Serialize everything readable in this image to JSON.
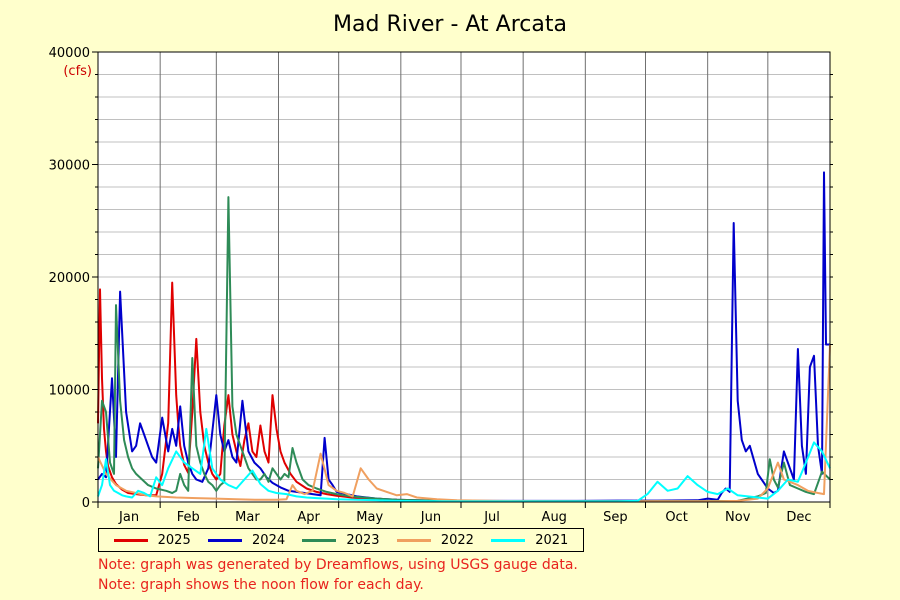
{
  "chart_data": {
    "type": "line",
    "title": "Mad River - At Arcata",
    "unit_label": "(cfs)",
    "ylim": [
      0,
      40000
    ],
    "yticks": [
      0,
      10000,
      20000,
      30000,
      40000
    ],
    "xlim": [
      1,
      366
    ],
    "grid": true,
    "legend_position": "bottom",
    "months": [
      "Jan",
      "Feb",
      "Mar",
      "Apr",
      "May",
      "Jun",
      "Jul",
      "Aug",
      "Sep",
      "Oct",
      "Nov",
      "Dec"
    ],
    "series": [
      {
        "name": "2025",
        "color": "#e00000",
        "x": [
          1,
          2,
          3,
          4,
          5,
          6,
          8,
          10,
          13,
          16,
          20,
          25,
          30,
          33,
          36,
          38,
          40,
          41,
          42,
          44,
          46,
          48,
          50,
          52,
          54,
          56,
          58,
          60,
          62,
          64,
          66,
          68,
          70,
          72,
          74,
          76,
          78,
          80,
          82,
          84,
          86,
          88,
          90,
          92,
          94,
          97,
          100,
          105,
          110,
          115,
          120,
          125,
          130,
          140,
          150
        ],
        "y": [
          7000,
          18900,
          11000,
          6500,
          4500,
          3200,
          2200,
          1600,
          1100,
          800,
          700,
          600,
          600,
          2500,
          7000,
          19500,
          9500,
          7000,
          5000,
          3300,
          2600,
          8000,
          14500,
          8000,
          5000,
          3500,
          2500,
          2000,
          2500,
          6800,
          9500,
          6000,
          4500,
          3200,
          5500,
          7000,
          4500,
          4000,
          6800,
          4500,
          3500,
          9500,
          6500,
          4500,
          3500,
          2500,
          1800,
          1200,
          900,
          700,
          550,
          450,
          350,
          250,
          200
        ]
      },
      {
        "name": "2024",
        "color": "#0000cc",
        "x": [
          1,
          3,
          5,
          8,
          10,
          12,
          15,
          18,
          20,
          22,
          24,
          26,
          28,
          30,
          33,
          36,
          38,
          40,
          42,
          44,
          46,
          48,
          50,
          53,
          56,
          60,
          62,
          64,
          66,
          68,
          70,
          73,
          76,
          79,
          82,
          85,
          88,
          92,
          96,
          100,
          104,
          108,
          112,
          114,
          116,
          118,
          120,
          125,
          130,
          140,
          150,
          160,
          170,
          180,
          200,
          220,
          240,
          260,
          280,
          300,
          305,
          310,
          312,
          314,
          316,
          318,
          320,
          322,
          324,
          326,
          330,
          335,
          338,
          340,
          343,
          346,
          348,
          350,
          352,
          354,
          356,
          358,
          360,
          362,
          363,
          364,
          365,
          366
        ],
        "y": [
          2000,
          2500,
          2200,
          11000,
          4000,
          18700,
          8000,
          4500,
          5000,
          7000,
          6000,
          5000,
          4000,
          3500,
          7500,
          4500,
          6500,
          5000,
          8500,
          5000,
          3500,
          2500,
          2000,
          1800,
          3000,
          9500,
          6000,
          4500,
          5500,
          4000,
          3500,
          9000,
          4500,
          3500,
          3000,
          2200,
          1700,
          1300,
          1000,
          900,
          800,
          700,
          600,
          5700,
          2000,
          1500,
          900,
          700,
          500,
          300,
          200,
          150,
          120,
          100,
          100,
          100,
          100,
          120,
          120,
          150,
          300,
          200,
          800,
          1200,
          900,
          24800,
          9000,
          5500,
          4500,
          5000,
          2500,
          1200,
          800,
          1000,
          4500,
          3000,
          2000,
          13600,
          5000,
          2500,
          12000,
          13000,
          5000,
          2500,
          29300,
          14000,
          14000,
          14000
        ]
      },
      {
        "name": "2023",
        "color": "#2e8b57",
        "x": [
          1,
          3,
          5,
          7,
          9,
          10,
          12,
          14,
          16,
          18,
          20,
          23,
          26,
          30,
          35,
          38,
          40,
          42,
          44,
          46,
          48,
          50,
          52,
          54,
          56,
          58,
          60,
          62,
          64,
          66,
          68,
          70,
          72,
          74,
          76,
          78,
          80,
          82,
          84,
          86,
          88,
          90,
          92,
          94,
          96,
          98,
          100,
          103,
          106,
          110,
          115,
          120,
          125,
          130,
          140,
          150,
          160,
          180,
          200,
          220,
          240,
          260,
          280,
          300,
          320,
          330,
          334,
          336,
          338,
          340,
          343,
          346,
          350,
          354,
          358,
          362,
          366
        ],
        "y": [
          3000,
          9000,
          8000,
          3500,
          2500,
          17500,
          9000,
          5500,
          4000,
          3000,
          2500,
          2000,
          1500,
          1200,
          1000,
          800,
          1000,
          2500,
          1500,
          1000,
          12800,
          5000,
          3500,
          2500,
          1800,
          1500,
          1000,
          1500,
          1800,
          27100,
          8500,
          6000,
          5000,
          4000,
          3000,
          2500,
          2000,
          2000,
          2500,
          1800,
          3000,
          2500,
          2000,
          2500,
          2200,
          4800,
          3500,
          2000,
          1500,
          1200,
          900,
          700,
          550,
          450,
          300,
          200,
          150,
          100,
          80,
          60,
          60,
          60,
          80,
          80,
          100,
          500,
          800,
          3800,
          2000,
          1300,
          3500,
          1500,
          1200,
          900,
          700,
          2700,
          2000
        ]
      },
      {
        "name": "2022",
        "color": "#f0a060",
        "x": [
          1,
          5,
          10,
          15,
          20,
          25,
          30,
          40,
          50,
          60,
          70,
          80,
          90,
          95,
          98,
          100,
          104,
          108,
          112,
          116,
          120,
          124,
          128,
          132,
          136,
          140,
          145,
          150,
          155,
          160,
          170,
          180,
          200,
          220,
          240,
          260,
          280,
          300,
          310,
          320,
          325,
          330,
          335,
          340,
          343,
          346,
          350,
          355,
          360,
          363,
          366
        ],
        "y": [
          4000,
          2500,
          1500,
          1000,
          800,
          600,
          500,
          400,
          350,
          300,
          250,
          200,
          200,
          250,
          1500,
          1000,
          700,
          1000,
          4300,
          1500,
          1000,
          800,
          500,
          3000,
          2000,
          1200,
          900,
          600,
          700,
          400,
          250,
          150,
          100,
          80,
          60,
          60,
          60,
          60,
          60,
          100,
          200,
          300,
          1200,
          3500,
          2000,
          1800,
          1500,
          1000,
          800,
          700,
          14000
        ]
      },
      {
        "name": "2021",
        "color": "#00ffff",
        "x": [
          1,
          3,
          5,
          7,
          9,
          11,
          13,
          15,
          18,
          21,
          24,
          27,
          30,
          33,
          36,
          40,
          44,
          48,
          52,
          55,
          58,
          62,
          66,
          70,
          74,
          78,
          82,
          86,
          90,
          95,
          100,
          105,
          110,
          115,
          120,
          130,
          140,
          150,
          160,
          170,
          180,
          200,
          220,
          240,
          260,
          270,
          275,
          280,
          285,
          290,
          295,
          300,
          305,
          310,
          315,
          320,
          325,
          330,
          335,
          340,
          345,
          350,
          354,
          358,
          362,
          366
        ],
        "y": [
          500,
          1500,
          3800,
          1500,
          1000,
          800,
          600,
          500,
          400,
          1000,
          800,
          500,
          2200,
          1500,
          3000,
          4500,
          3500,
          3000,
          2500,
          6500,
          3000,
          2000,
          1500,
          1200,
          2000,
          2800,
          1600,
          1000,
          800,
          700,
          500,
          400,
          350,
          300,
          250,
          200,
          150,
          100,
          80,
          60,
          50,
          50,
          50,
          50,
          50,
          100,
          700,
          1800,
          1000,
          1200,
          2300,
          1500,
          900,
          700,
          1200,
          600,
          500,
          400,
          300,
          1000,
          2000,
          1800,
          3500,
          5300,
          4500,
          3000
        ]
      }
    ]
  },
  "notes": [
    "Note: graph was generated by Dreamflows, using USGS gauge data.",
    "Note: graph shows the noon flow for each day."
  ]
}
